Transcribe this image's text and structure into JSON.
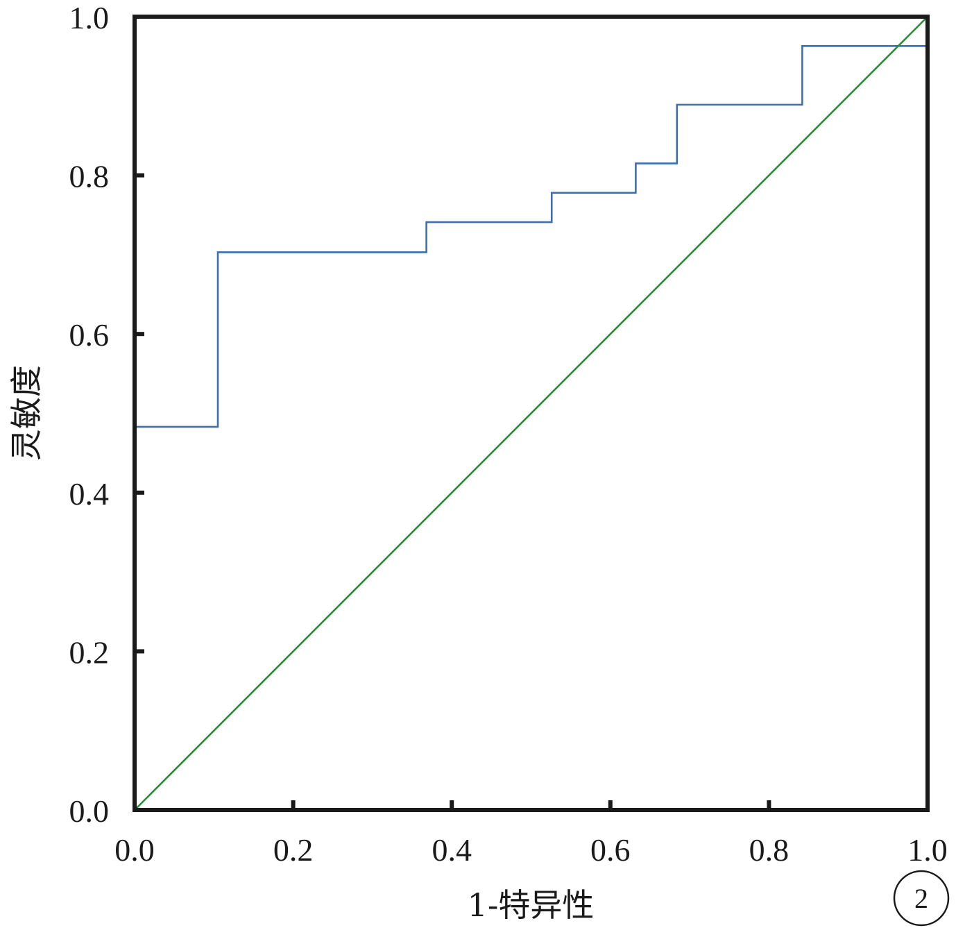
{
  "chart_data": {
    "type": "line",
    "title": "",
    "xlabel": "1-特异性",
    "ylabel": "灵敏度",
    "xlim": [
      0,
      1
    ],
    "ylim": [
      0,
      1
    ],
    "xticks": [
      "0.0",
      "0.2",
      "0.4",
      "0.6",
      "0.8",
      "1.0"
    ],
    "yticks": [
      "0.0",
      "0.2",
      "0.4",
      "0.6",
      "0.8",
      "1.0"
    ],
    "grid": false,
    "series": [
      {
        "color": "#3d6fb0",
        "style": "step",
        "points": [
          [
            0.0,
            0.0
          ],
          [
            0.0,
            0.483
          ],
          [
            0.105,
            0.483
          ],
          [
            0.105,
            0.703
          ],
          [
            0.368,
            0.703
          ],
          [
            0.368,
            0.741
          ],
          [
            0.526,
            0.741
          ],
          [
            0.526,
            0.778
          ],
          [
            0.632,
            0.778
          ],
          [
            0.632,
            0.815
          ],
          [
            0.684,
            0.815
          ],
          [
            0.684,
            0.889
          ],
          [
            0.842,
            0.889
          ],
          [
            0.842,
            0.963
          ],
          [
            1.0,
            0.963
          ]
        ]
      },
      {
        "color": "#2e8b3a",
        "style": "reference",
        "points": [
          [
            0.0,
            0.0
          ],
          [
            1.0,
            1.0
          ]
        ]
      }
    ],
    "panel_label": "2"
  }
}
